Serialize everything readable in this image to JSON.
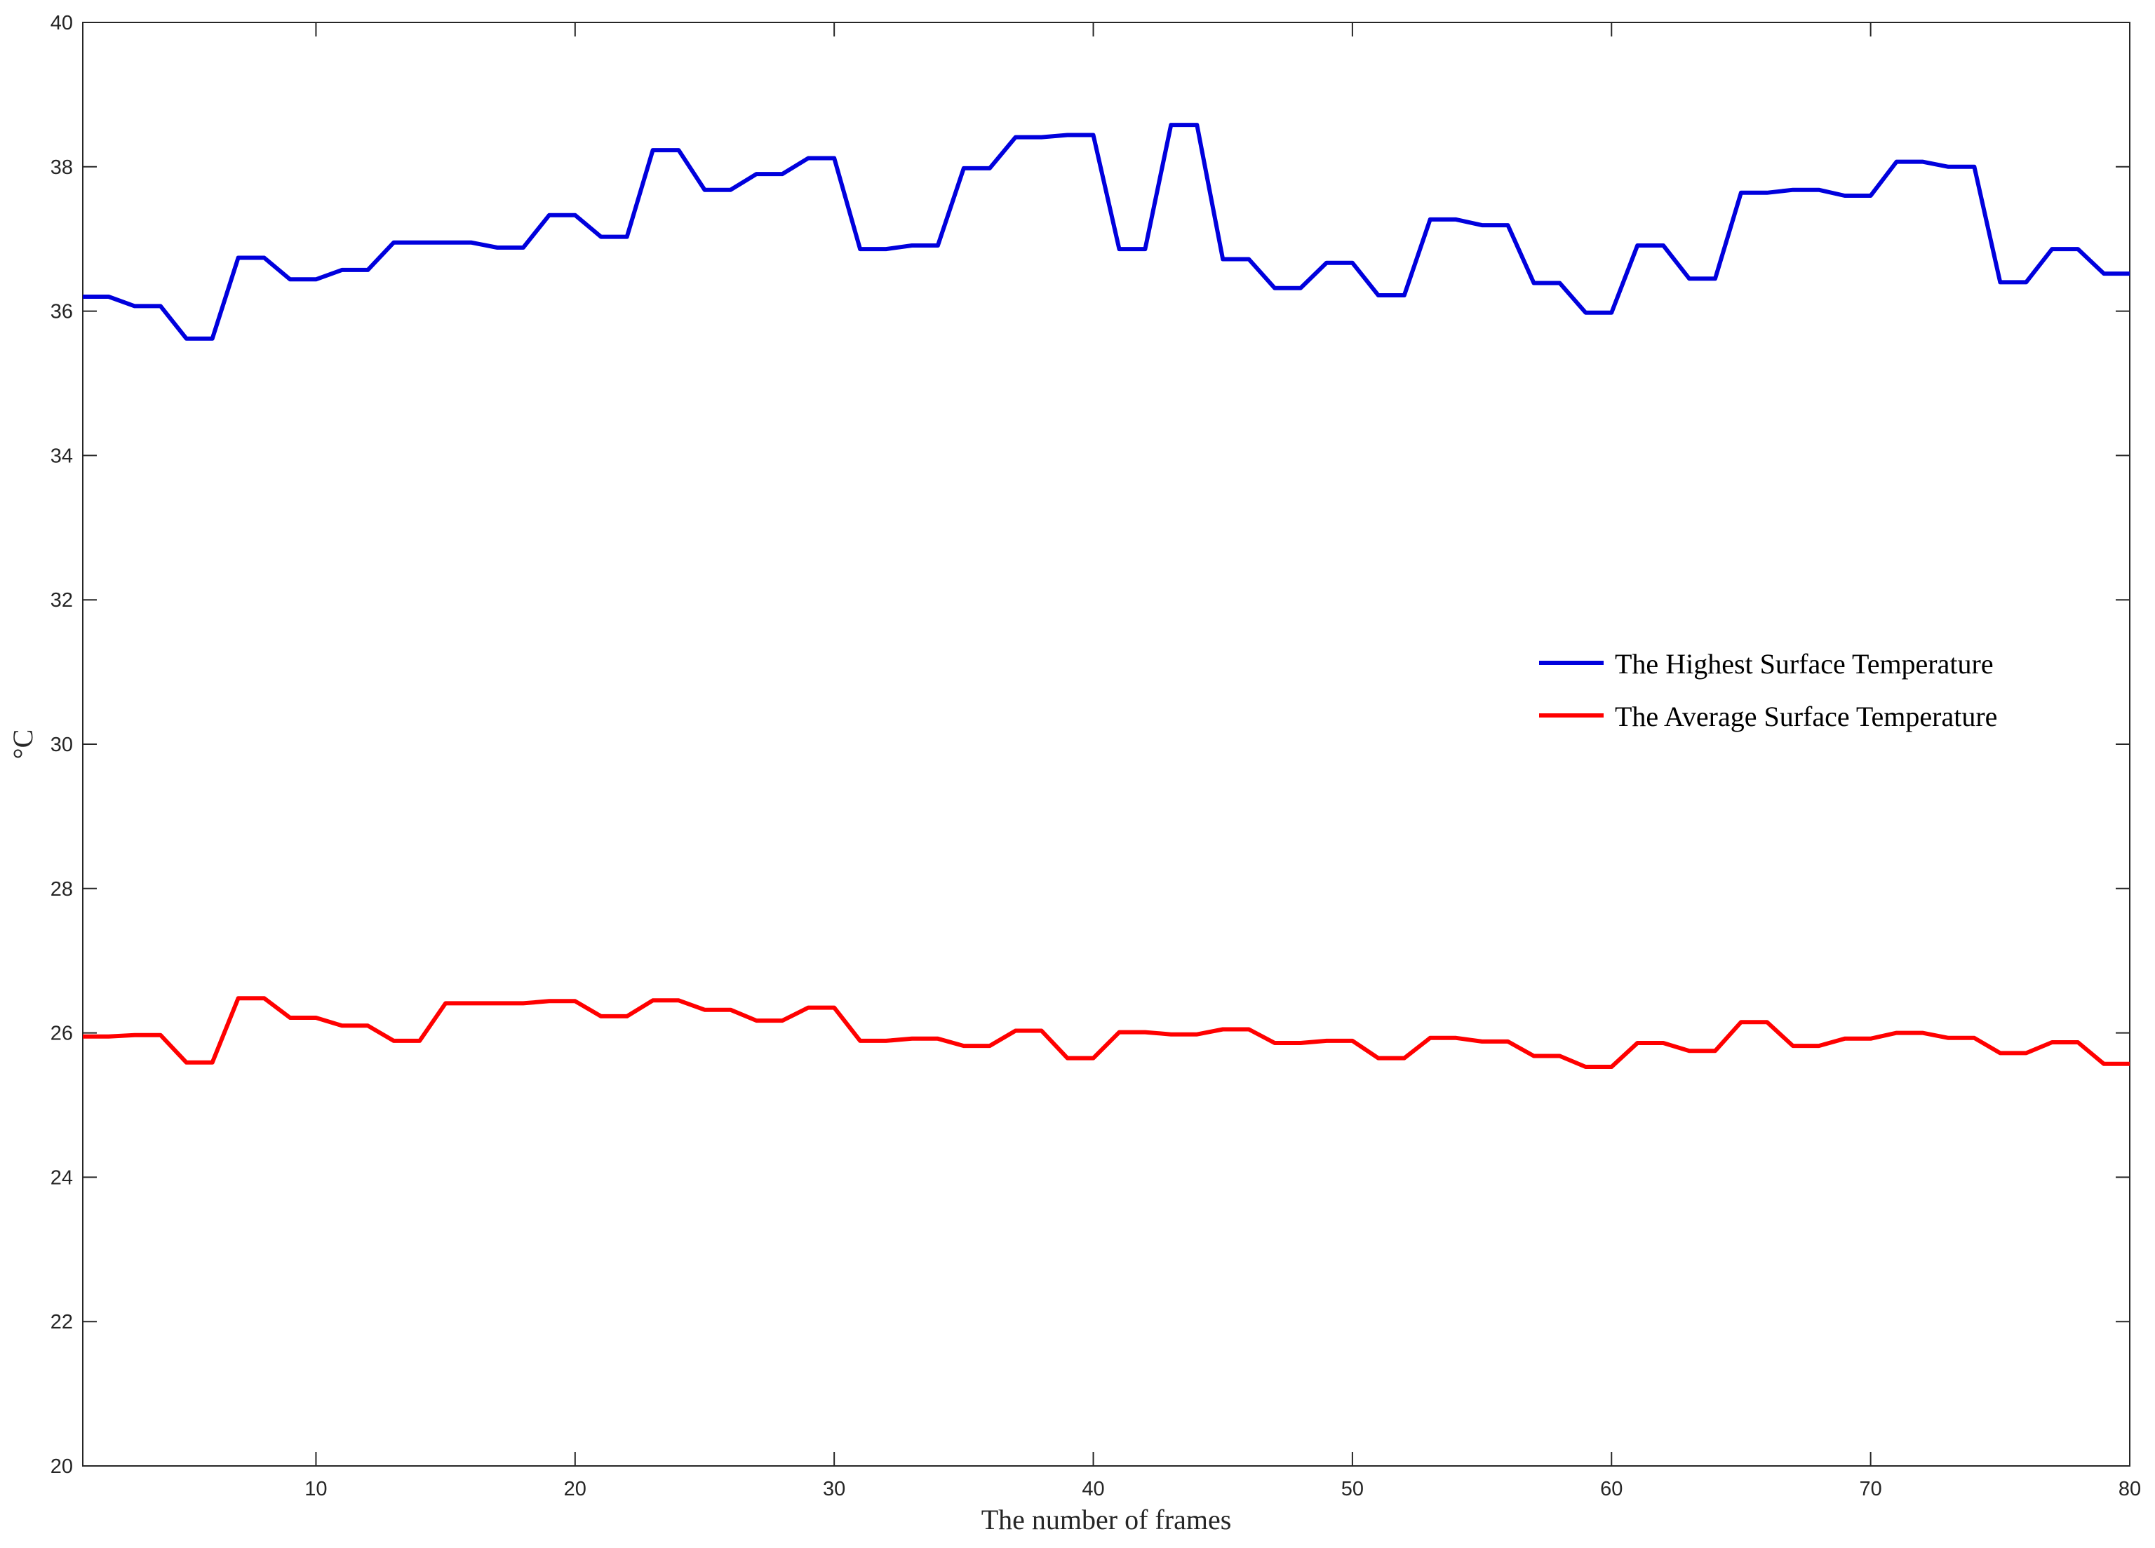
{
  "chart_data": {
    "type": "line",
    "title": "",
    "xlabel": "The number of frames",
    "ylabel": "°C",
    "xlim": [
      1,
      80
    ],
    "ylim": [
      20,
      40
    ],
    "xticks": [
      10,
      20,
      30,
      40,
      50,
      60,
      70,
      80
    ],
    "yticks": [
      20,
      22,
      24,
      26,
      28,
      30,
      32,
      34,
      36,
      38,
      40
    ],
    "grid": false,
    "legend_position": "right",
    "x": [
      1,
      2,
      3,
      4,
      5,
      6,
      7,
      8,
      9,
      10,
      11,
      12,
      13,
      14,
      15,
      16,
      17,
      18,
      19,
      20,
      21,
      22,
      23,
      24,
      25,
      26,
      27,
      28,
      29,
      30,
      31,
      32,
      33,
      34,
      35,
      36,
      37,
      38,
      39,
      40,
      41,
      42,
      43,
      44,
      45,
      46,
      47,
      48,
      49,
      50,
      51,
      52,
      53,
      54,
      55,
      56,
      57,
      58,
      59,
      60,
      61,
      62,
      63,
      64,
      65,
      66,
      67,
      68,
      69,
      70,
      71,
      72,
      73,
      74,
      75,
      76,
      77,
      78,
      79,
      80
    ],
    "series": [
      {
        "name": "The Highest Surface Temperature",
        "color": "#0000dd",
        "values": [
          36.2,
          36.2,
          36.07,
          36.07,
          35.62,
          35.62,
          36.74,
          36.74,
          36.44,
          36.44,
          36.57,
          36.57,
          36.95,
          36.95,
          36.95,
          36.95,
          36.88,
          36.88,
          37.33,
          37.33,
          37.03,
          37.03,
          38.23,
          38.23,
          37.68,
          37.68,
          37.9,
          37.9,
          38.12,
          38.12,
          36.86,
          36.86,
          36.91,
          36.91,
          37.98,
          37.98,
          38.41,
          38.41,
          38.44,
          38.44,
          36.86,
          36.86,
          38.58,
          38.58,
          36.72,
          36.72,
          36.32,
          36.32,
          36.67,
          36.67,
          36.22,
          36.22,
          37.27,
          37.27,
          37.19,
          37.19,
          36.39,
          36.39,
          35.98,
          35.98,
          36.91,
          36.91,
          36.45,
          36.45,
          37.64,
          37.64,
          37.68,
          37.68,
          37.6,
          37.6,
          38.07,
          38.07,
          38.0,
          38.0,
          36.4,
          36.4,
          36.86,
          36.86,
          36.52,
          36.52
        ]
      },
      {
        "name": "The Average Surface Temperature",
        "color": "#ff0000",
        "values": [
          25.95,
          25.95,
          25.97,
          25.97,
          25.59,
          25.59,
          26.48,
          26.48,
          26.21,
          26.21,
          26.1,
          26.1,
          25.89,
          25.89,
          26.41,
          26.41,
          26.41,
          26.41,
          26.44,
          26.44,
          26.23,
          26.23,
          26.45,
          26.45,
          26.32,
          26.32,
          26.17,
          26.17,
          26.35,
          26.35,
          25.89,
          25.89,
          25.92,
          25.92,
          25.82,
          25.82,
          26.03,
          26.03,
          25.65,
          25.65,
          26.01,
          26.01,
          25.98,
          25.98,
          26.05,
          26.05,
          25.86,
          25.86,
          25.89,
          25.89,
          25.65,
          25.65,
          25.93,
          25.93,
          25.88,
          25.88,
          25.68,
          25.68,
          25.53,
          25.53,
          25.86,
          25.86,
          25.75,
          25.75,
          26.15,
          26.15,
          25.82,
          25.82,
          25.92,
          25.92,
          26.0,
          26.0,
          25.93,
          25.93,
          25.72,
          25.72,
          25.87,
          25.87,
          25.57,
          25.57
        ]
      }
    ]
  }
}
